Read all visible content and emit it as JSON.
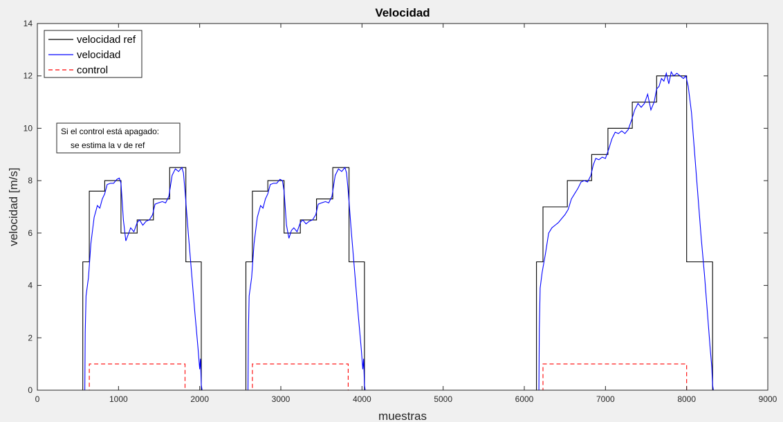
{
  "chart_data": {
    "type": "line",
    "title": "Velocidad",
    "xlabel": "muestras",
    "ylabel": "velocidad [m/s]",
    "xlim": [
      0,
      9000
    ],
    "ylim": [
      0,
      14
    ],
    "xticks": [
      0,
      1000,
      2000,
      3000,
      4000,
      5000,
      6000,
      7000,
      8000,
      9000
    ],
    "yticks": [
      0,
      2,
      4,
      6,
      8,
      10,
      12,
      14
    ],
    "grid": false,
    "legend_position": "top-left",
    "annotation": [
      "Si el control está apagado:",
      "se estima la v de ref"
    ],
    "series": [
      {
        "name": "velocidad ref",
        "color": "#000000",
        "style": "solid",
        "points": [
          [
            0,
            0
          ],
          [
            560,
            0
          ],
          [
            560,
            4.9
          ],
          [
            640,
            4.9
          ],
          [
            640,
            7.6
          ],
          [
            830,
            7.6
          ],
          [
            830,
            8.0
          ],
          [
            1030,
            8.0
          ],
          [
            1030,
            6.0
          ],
          [
            1230,
            6.0
          ],
          [
            1230,
            6.5
          ],
          [
            1430,
            6.5
          ],
          [
            1430,
            7.3
          ],
          [
            1630,
            7.3
          ],
          [
            1630,
            8.5
          ],
          [
            1830,
            8.5
          ],
          [
            1830,
            4.9
          ],
          [
            2020,
            4.9
          ],
          [
            2020,
            0
          ],
          [
            2570,
            0
          ],
          [
            2570,
            4.9
          ],
          [
            2650,
            4.9
          ],
          [
            2650,
            7.6
          ],
          [
            2840,
            7.6
          ],
          [
            2840,
            8.0
          ],
          [
            3040,
            8.0
          ],
          [
            3040,
            6.0
          ],
          [
            3240,
            6.0
          ],
          [
            3240,
            6.5
          ],
          [
            3440,
            6.5
          ],
          [
            3440,
            7.3
          ],
          [
            3640,
            7.3
          ],
          [
            3640,
            8.5
          ],
          [
            3840,
            8.5
          ],
          [
            3840,
            4.9
          ],
          [
            4030,
            4.9
          ],
          [
            4030,
            0
          ],
          [
            6150,
            0
          ],
          [
            6150,
            4.9
          ],
          [
            6230,
            4.9
          ],
          [
            6230,
            7.0
          ],
          [
            6530,
            7.0
          ],
          [
            6530,
            8.0
          ],
          [
            6830,
            8.0
          ],
          [
            6830,
            9.0
          ],
          [
            7030,
            9.0
          ],
          [
            7030,
            10.0
          ],
          [
            7330,
            10.0
          ],
          [
            7330,
            11.0
          ],
          [
            7630,
            11.0
          ],
          [
            7630,
            12.0
          ],
          [
            8000,
            12.0
          ],
          [
            8000,
            4.9
          ],
          [
            8320,
            4.9
          ],
          [
            8320,
            0
          ],
          [
            8400,
            0
          ]
        ]
      },
      {
        "name": "velocidad",
        "color": "#0000ff",
        "style": "solid",
        "points": [
          [
            0,
            0
          ],
          [
            585,
            0
          ],
          [
            590,
            2.2
          ],
          [
            600,
            3.6
          ],
          [
            630,
            4.3
          ],
          [
            660,
            5.6
          ],
          [
            700,
            6.6
          ],
          [
            740,
            7.05
          ],
          [
            770,
            6.95
          ],
          [
            800,
            7.3
          ],
          [
            830,
            7.5
          ],
          [
            860,
            7.85
          ],
          [
            900,
            7.9
          ],
          [
            940,
            7.9
          ],
          [
            980,
            8.05
          ],
          [
            1010,
            8.1
          ],
          [
            1030,
            7.9
          ],
          [
            1060,
            6.5
          ],
          [
            1090,
            5.7
          ],
          [
            1120,
            5.95
          ],
          [
            1150,
            6.2
          ],
          [
            1190,
            6.05
          ],
          [
            1230,
            6.4
          ],
          [
            1260,
            6.5
          ],
          [
            1300,
            6.3
          ],
          [
            1340,
            6.45
          ],
          [
            1380,
            6.5
          ],
          [
            1420,
            6.7
          ],
          [
            1450,
            7.1
          ],
          [
            1490,
            7.15
          ],
          [
            1540,
            7.2
          ],
          [
            1580,
            7.15
          ],
          [
            1620,
            7.4
          ],
          [
            1660,
            8.2
          ],
          [
            1700,
            8.45
          ],
          [
            1740,
            8.35
          ],
          [
            1780,
            8.5
          ],
          [
            1800,
            8.3
          ],
          [
            1820,
            7.6
          ],
          [
            1860,
            6.0
          ],
          [
            1900,
            4.5
          ],
          [
            1940,
            3.0
          ],
          [
            1980,
            1.6
          ],
          [
            2000,
            0.8
          ],
          [
            2010,
            1.2
          ],
          [
            2020,
            0.2
          ],
          [
            2030,
            0
          ],
          [
            2595,
            0
          ],
          [
            2600,
            2.2
          ],
          [
            2610,
            3.6
          ],
          [
            2640,
            4.3
          ],
          [
            2670,
            5.6
          ],
          [
            2710,
            6.6
          ],
          [
            2750,
            7.05
          ],
          [
            2780,
            6.95
          ],
          [
            2810,
            7.3
          ],
          [
            2840,
            7.5
          ],
          [
            2870,
            7.85
          ],
          [
            2910,
            7.9
          ],
          [
            2950,
            7.9
          ],
          [
            2990,
            8.05
          ],
          [
            3020,
            8.0
          ],
          [
            3040,
            7.6
          ],
          [
            3070,
            6.3
          ],
          [
            3100,
            5.8
          ],
          [
            3130,
            6.1
          ],
          [
            3160,
            6.2
          ],
          [
            3200,
            6.05
          ],
          [
            3240,
            6.4
          ],
          [
            3270,
            6.5
          ],
          [
            3310,
            6.35
          ],
          [
            3350,
            6.45
          ],
          [
            3390,
            6.5
          ],
          [
            3430,
            6.7
          ],
          [
            3460,
            7.1
          ],
          [
            3500,
            7.15
          ],
          [
            3550,
            7.2
          ],
          [
            3590,
            7.15
          ],
          [
            3630,
            7.4
          ],
          [
            3670,
            8.2
          ],
          [
            3710,
            8.45
          ],
          [
            3750,
            8.35
          ],
          [
            3790,
            8.5
          ],
          [
            3810,
            8.3
          ],
          [
            3830,
            7.6
          ],
          [
            3870,
            6.0
          ],
          [
            3910,
            4.5
          ],
          [
            3950,
            3.0
          ],
          [
            3990,
            1.6
          ],
          [
            4010,
            0.8
          ],
          [
            4020,
            1.2
          ],
          [
            4030,
            0.2
          ],
          [
            4040,
            0
          ],
          [
            6180,
            0
          ],
          [
            6185,
            2.3
          ],
          [
            6195,
            3.9
          ],
          [
            6220,
            4.5
          ],
          [
            6260,
            5.2
          ],
          [
            6300,
            6.0
          ],
          [
            6340,
            6.2
          ],
          [
            6380,
            6.3
          ],
          [
            6420,
            6.4
          ],
          [
            6460,
            6.55
          ],
          [
            6500,
            6.7
          ],
          [
            6540,
            6.9
          ],
          [
            6580,
            7.3
          ],
          [
            6620,
            7.5
          ],
          [
            6660,
            7.7
          ],
          [
            6700,
            7.95
          ],
          [
            6740,
            8.0
          ],
          [
            6780,
            7.95
          ],
          [
            6820,
            8.2
          ],
          [
            6850,
            8.6
          ],
          [
            6880,
            8.85
          ],
          [
            6920,
            8.8
          ],
          [
            6960,
            8.9
          ],
          [
            7000,
            8.85
          ],
          [
            7040,
            9.2
          ],
          [
            7080,
            9.6
          ],
          [
            7120,
            9.85
          ],
          [
            7160,
            9.8
          ],
          [
            7200,
            9.9
          ],
          [
            7240,
            9.8
          ],
          [
            7280,
            9.95
          ],
          [
            7320,
            10.3
          ],
          [
            7360,
            10.7
          ],
          [
            7400,
            10.95
          ],
          [
            7440,
            10.8
          ],
          [
            7480,
            10.95
          ],
          [
            7520,
            11.3
          ],
          [
            7560,
            10.7
          ],
          [
            7600,
            11.0
          ],
          [
            7630,
            11.5
          ],
          [
            7660,
            11.6
          ],
          [
            7690,
            11.9
          ],
          [
            7720,
            11.8
          ],
          [
            7750,
            12.1
          ],
          [
            7780,
            11.7
          ],
          [
            7810,
            12.15
          ],
          [
            7840,
            12.0
          ],
          [
            7880,
            12.1
          ],
          [
            7920,
            12.0
          ],
          [
            7960,
            11.9
          ],
          [
            7990,
            12.0
          ],
          [
            8020,
            11.6
          ],
          [
            8060,
            10.6
          ],
          [
            8100,
            9.0
          ],
          [
            8140,
            7.4
          ],
          [
            8180,
            5.8
          ],
          [
            8220,
            4.4
          ],
          [
            8260,
            2.8
          ],
          [
            8290,
            1.6
          ],
          [
            8310,
            0.9
          ],
          [
            8320,
            0.2
          ],
          [
            8330,
            0
          ]
        ]
      },
      {
        "name": "control",
        "color": "#ff0000",
        "style": "dashed",
        "points": [
          [
            0,
            0
          ],
          [
            640,
            0
          ],
          [
            640,
            1
          ],
          [
            1820,
            1
          ],
          [
            1820,
            0
          ],
          [
            2650,
            0
          ],
          [
            2650,
            1
          ],
          [
            3830,
            1
          ],
          [
            3830,
            0
          ],
          [
            6230,
            0
          ],
          [
            6230,
            1
          ],
          [
            8000,
            1
          ],
          [
            8000,
            0
          ],
          [
            8400,
            0
          ]
        ]
      }
    ]
  }
}
